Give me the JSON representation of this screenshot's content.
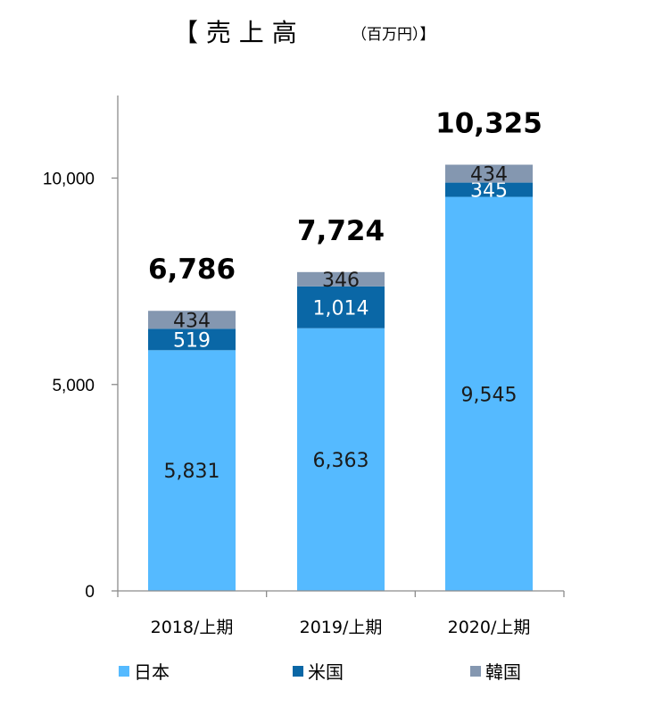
{
  "chart_data": {
    "type": "bar",
    "stacked": true,
    "title": "【 売 上 高",
    "title_unit": "（百万円）】",
    "categories": [
      "2018/上期",
      "2019/上期",
      "2020/上期"
    ],
    "series": [
      {
        "name": "日本",
        "values": [
          5831,
          6363,
          9545
        ],
        "color": "#55baff",
        "label_color": "#1a1a1a",
        "labels": [
          "5,831",
          "6,363",
          "9,545"
        ]
      },
      {
        "name": "米国",
        "values": [
          519,
          1014,
          345
        ],
        "color": "#0a67a6",
        "label_color": "#ffffff",
        "labels": [
          "519",
          "1,014",
          "345"
        ]
      },
      {
        "name": "韓国",
        "values": [
          434,
          346,
          434
        ],
        "color": "#8497b0",
        "label_color": "#1a1a1a",
        "labels": [
          "434",
          "346",
          "434"
        ]
      }
    ],
    "totals": [
      "6,786",
      "7,724",
      "10,325"
    ],
    "y_ticks": [
      {
        "value": 0,
        "label": "0"
      },
      {
        "value": 5000,
        "label": "5,000"
      },
      {
        "value": 10000,
        "label": "10,000"
      }
    ],
    "ylim": [
      0,
      12000
    ],
    "grid": false,
    "legend_position": "bottom"
  }
}
